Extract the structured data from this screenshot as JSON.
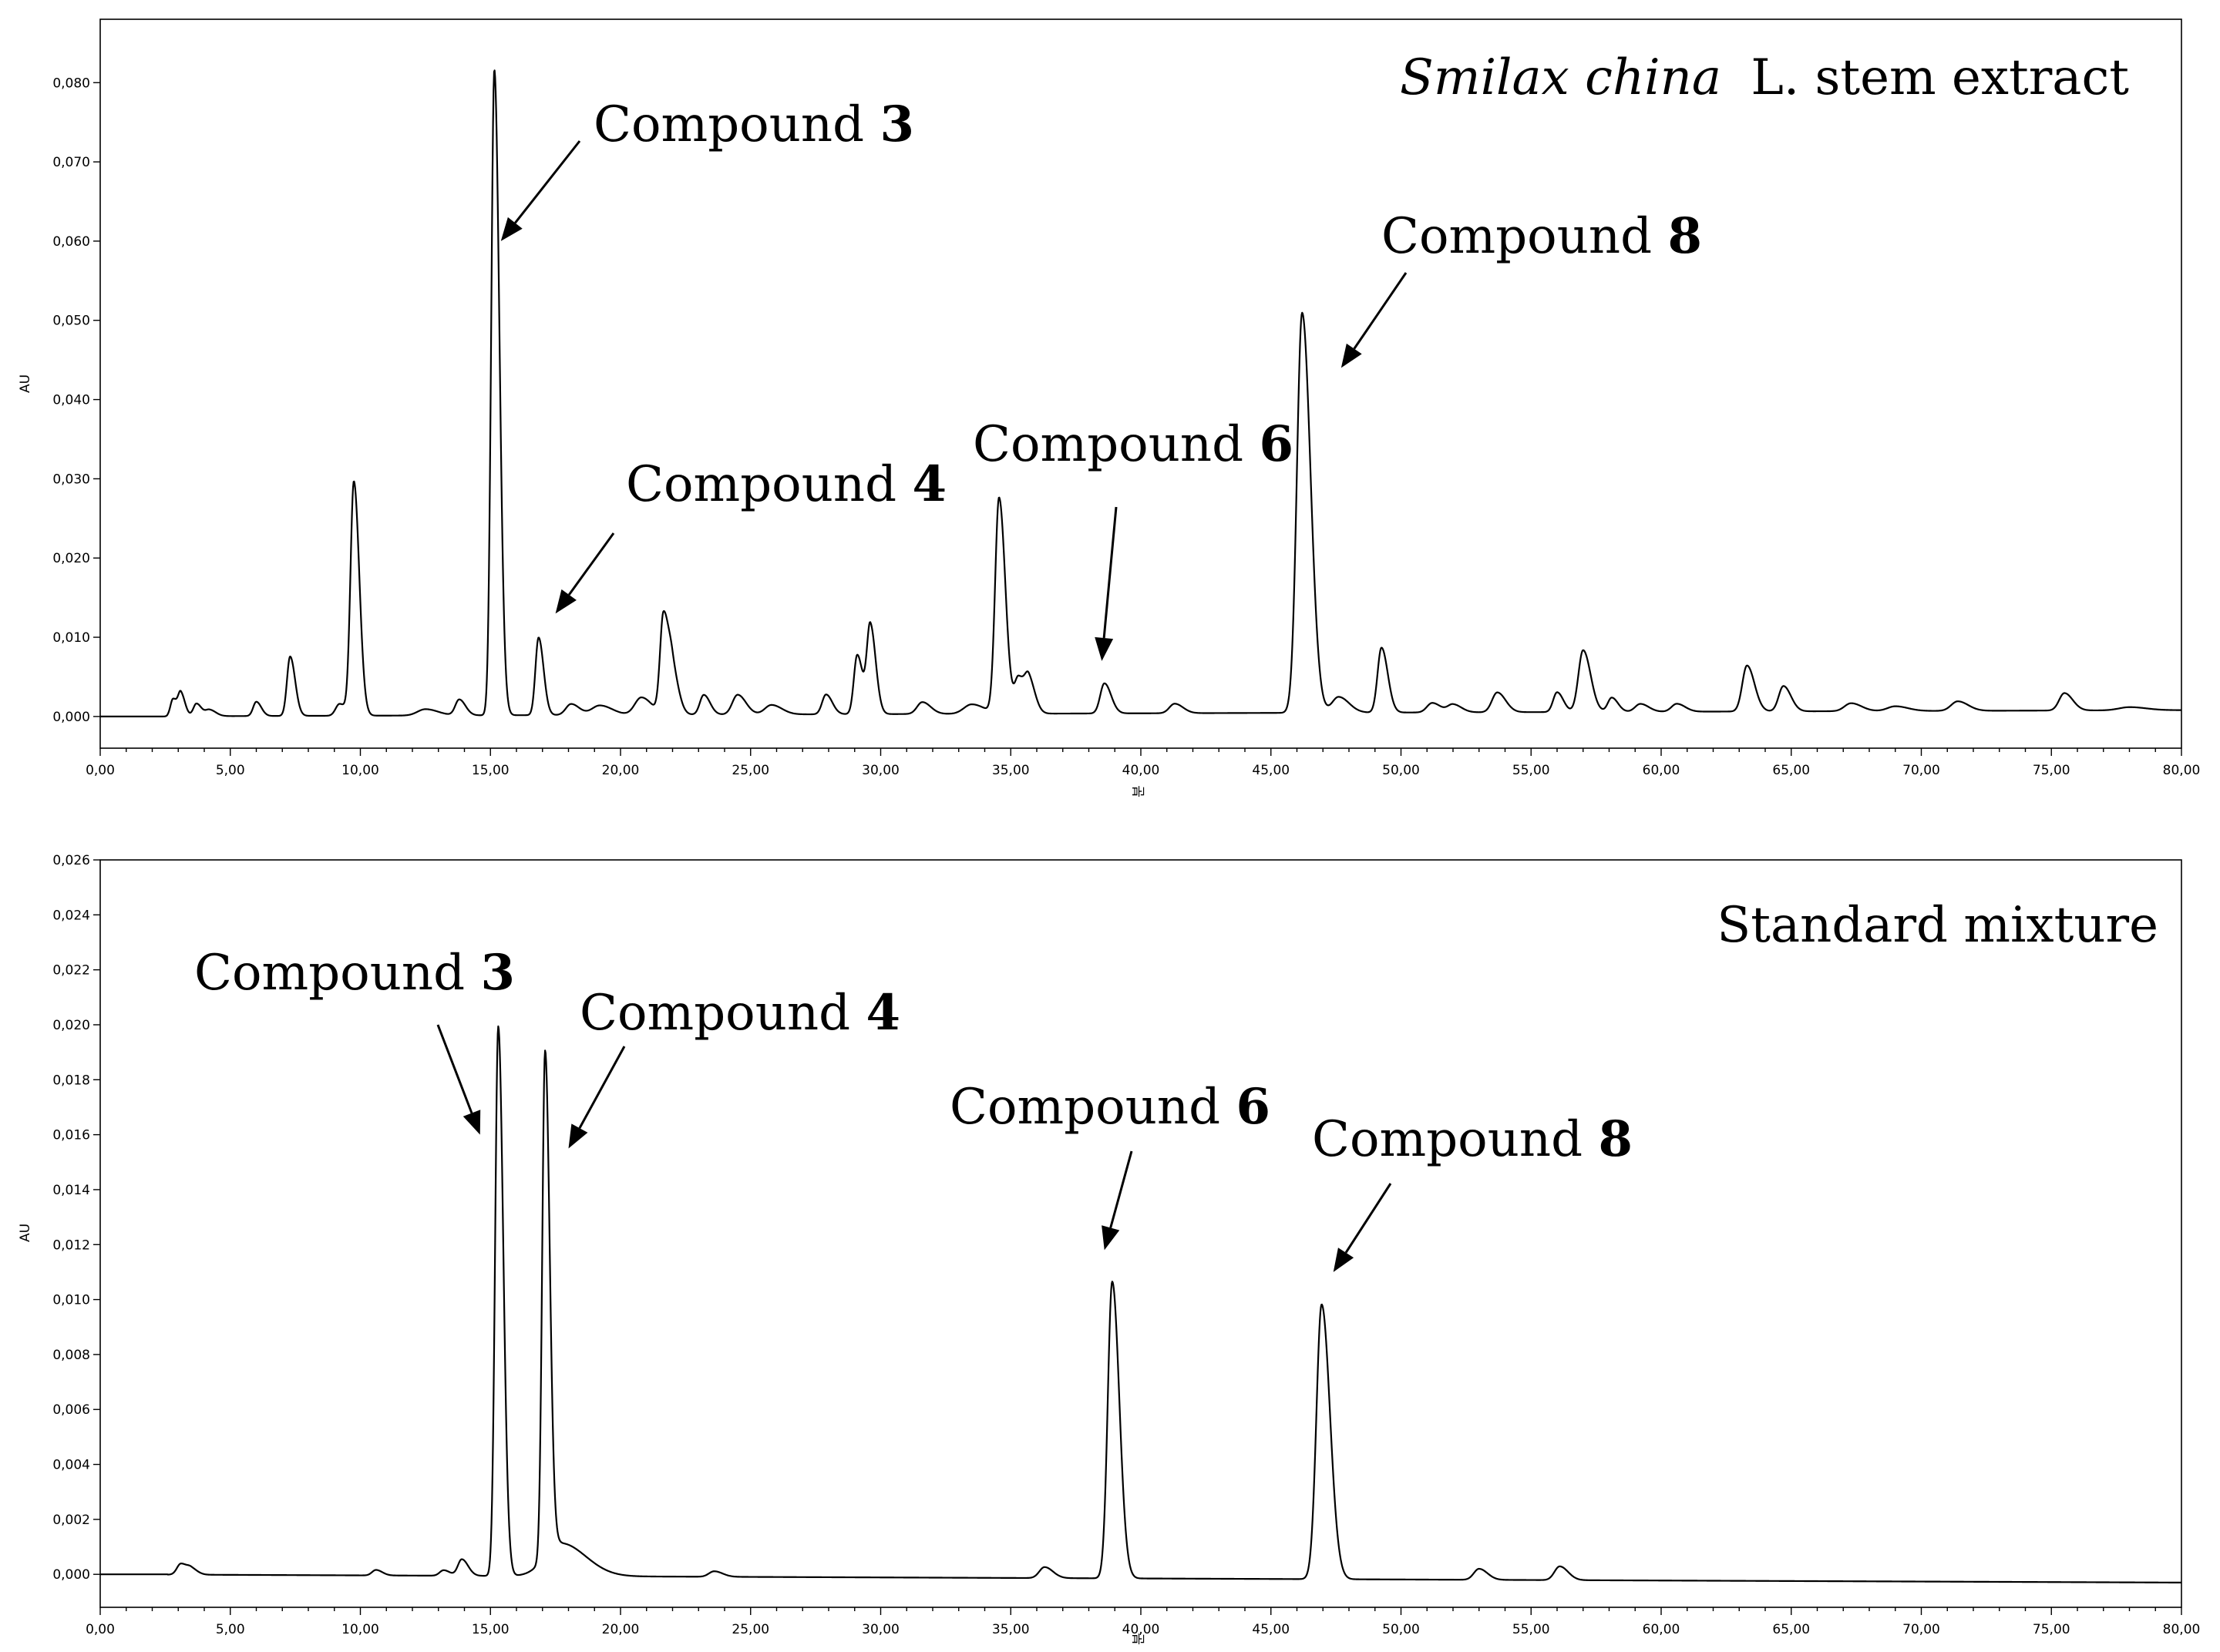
{
  "chart_data": [
    {
      "type": "line",
      "panel": "top",
      "title_italic": "Smilax china",
      "title_rest": "L. stem extract",
      "ylabel": "AU",
      "xlabel": "분",
      "xlim": [
        0,
        80
      ],
      "ylim": [
        -0.004,
        0.088
      ],
      "x_ticks": [
        "0,00",
        "5,00",
        "10,00",
        "15,00",
        "20,00",
        "25,00",
        "30,00",
        "35,00",
        "40,00",
        "45,00",
        "50,00",
        "55,00",
        "60,00",
        "65,00",
        "70,00",
        "75,00",
        "80,00"
      ],
      "y_ticks": [
        "0,000",
        "0,010",
        "0,020",
        "0,030",
        "0,040",
        "0,050",
        "0,060",
        "0,070",
        "0,080"
      ],
      "x_tick_values": [
        0,
        5,
        10,
        15,
        20,
        25,
        30,
        35,
        40,
        45,
        50,
        55,
        60,
        65,
        70,
        75,
        80
      ],
      "y_tick_values": [
        0,
        0.01,
        0.02,
        0.03,
        0.04,
        0.05,
        0.06,
        0.07,
        0.08
      ],
      "baseline": {
        "start": 0.0,
        "end": 0.0008
      },
      "peaks": [
        {
          "rt": 2.8,
          "h": 0.0022,
          "w": 0.1
        },
        {
          "rt": 3.1,
          "h": 0.0028,
          "w": 0.1
        },
        {
          "rt": 3.7,
          "h": 0.0016,
          "w": 0.12
        },
        {
          "rt": 4.2,
          "h": 0.0008,
          "w": 0.15
        },
        {
          "rt": 6.0,
          "h": 0.0018,
          "w": 0.12
        },
        {
          "rt": 7.3,
          "h": 0.0075,
          "w": 0.12
        },
        {
          "rt": 9.2,
          "h": 0.0015,
          "w": 0.15
        },
        {
          "rt": 9.75,
          "h": 0.0295,
          "w": 0.13
        },
        {
          "rt": 12.5,
          "h": 0.0008,
          "w": 0.3
        },
        {
          "rt": 13.8,
          "h": 0.002,
          "w": 0.15
        },
        {
          "rt": 15.15,
          "h": 0.0815,
          "w": 0.12
        },
        {
          "rt": 16.85,
          "h": 0.0098,
          "w": 0.12
        },
        {
          "rt": 18.1,
          "h": 0.0014,
          "w": 0.2
        },
        {
          "rt": 19.2,
          "h": 0.0012,
          "w": 0.3
        },
        {
          "rt": 20.8,
          "h": 0.0022,
          "w": 0.25
        },
        {
          "rt": 21.65,
          "h": 0.0125,
          "w": 0.13
        },
        {
          "rt": 22.0,
          "h": 0.005,
          "w": 0.15
        },
        {
          "rt": 23.2,
          "h": 0.0025,
          "w": 0.15
        },
        {
          "rt": 24.5,
          "h": 0.0025,
          "w": 0.2
        },
        {
          "rt": 25.8,
          "h": 0.0012,
          "w": 0.25
        },
        {
          "rt": 27.9,
          "h": 0.0025,
          "w": 0.15
        },
        {
          "rt": 29.1,
          "h": 0.0075,
          "w": 0.13
        },
        {
          "rt": 29.6,
          "h": 0.0112,
          "w": 0.13
        },
        {
          "rt": 31.6,
          "h": 0.0015,
          "w": 0.2
        },
        {
          "rt": 33.5,
          "h": 0.0012,
          "w": 0.3
        },
        {
          "rt": 34.55,
          "h": 0.0272,
          "w": 0.15
        },
        {
          "rt": 35.3,
          "h": 0.0045,
          "w": 0.15
        },
        {
          "rt": 35.7,
          "h": 0.004,
          "w": 0.15
        },
        {
          "rt": 38.6,
          "h": 0.0038,
          "w": 0.16
        },
        {
          "rt": 41.3,
          "h": 0.0012,
          "w": 0.2
        },
        {
          "rt": 46.2,
          "h": 0.0505,
          "w": 0.2
        },
        {
          "rt": 47.6,
          "h": 0.002,
          "w": 0.25
        },
        {
          "rt": 49.25,
          "h": 0.0082,
          "w": 0.15
        },
        {
          "rt": 51.2,
          "h": 0.0012,
          "w": 0.2
        },
        {
          "rt": 52.0,
          "h": 0.001,
          "w": 0.2
        },
        {
          "rt": 53.7,
          "h": 0.0025,
          "w": 0.2
        },
        {
          "rt": 56.0,
          "h": 0.0025,
          "w": 0.15
        },
        {
          "rt": 57.0,
          "h": 0.0078,
          "w": 0.18
        },
        {
          "rt": 58.1,
          "h": 0.0018,
          "w": 0.15
        },
        {
          "rt": 59.2,
          "h": 0.001,
          "w": 0.2
        },
        {
          "rt": 60.6,
          "h": 0.001,
          "w": 0.2
        },
        {
          "rt": 63.3,
          "h": 0.0058,
          "w": 0.18
        },
        {
          "rt": 64.7,
          "h": 0.0032,
          "w": 0.18
        },
        {
          "rt": 67.3,
          "h": 0.001,
          "w": 0.25
        },
        {
          "rt": 69.0,
          "h": 0.0006,
          "w": 0.3
        },
        {
          "rt": 71.4,
          "h": 0.0012,
          "w": 0.25
        },
        {
          "rt": 75.5,
          "h": 0.0022,
          "w": 0.2
        },
        {
          "rt": 78.0,
          "h": 0.0004,
          "w": 0.4
        }
      ],
      "annotations": [
        {
          "text": "Compound ",
          "num": "3",
          "target_rt": 15.4,
          "target_y": 0.06
        },
        {
          "text": "Compound ",
          "num": "4",
          "target_rt": 17.5,
          "target_y": 0.013
        },
        {
          "text": "Compound ",
          "num": "6",
          "target_rt": 38.5,
          "target_y": 0.007
        },
        {
          "text": "Compound ",
          "num": "8",
          "target_rt": 47.7,
          "target_y": 0.044
        }
      ]
    },
    {
      "type": "line",
      "panel": "bottom",
      "title": "Standard mixture",
      "ylabel": "AU",
      "xlabel": "분",
      "xlim": [
        0,
        80
      ],
      "ylim": [
        -0.0012,
        0.026
      ],
      "x_ticks": [
        "0,00",
        "5,00",
        "10,00",
        "15,00",
        "20,00",
        "25,00",
        "30,00",
        "35,00",
        "40,00",
        "45,00",
        "50,00",
        "55,00",
        "60,00",
        "65,00",
        "70,00",
        "75,00",
        "80,00"
      ],
      "y_ticks": [
        "0,000",
        "0,002",
        "0,004",
        "0,006",
        "0,008",
        "0,010",
        "0,012",
        "0,014",
        "0,016",
        "0,018",
        "0,020",
        "0,022",
        "0,024",
        "0,026"
      ],
      "x_tick_values": [
        0,
        5,
        10,
        15,
        20,
        25,
        30,
        35,
        40,
        45,
        50,
        55,
        60,
        65,
        70,
        75,
        80
      ],
      "y_tick_values": [
        0,
        0.002,
        0.004,
        0.006,
        0.008,
        0.01,
        0.012,
        0.014,
        0.016,
        0.018,
        0.02,
        0.022,
        0.024,
        0.026
      ],
      "baseline": {
        "start": 0.0,
        "end": -0.0003
      },
      "peaks": [
        {
          "rt": 3.1,
          "h": 0.0004,
          "w": 0.15
        },
        {
          "rt": 3.5,
          "h": 0.0002,
          "w": 0.15
        },
        {
          "rt": 10.6,
          "h": 0.0002,
          "w": 0.15
        },
        {
          "rt": 13.2,
          "h": 0.0002,
          "w": 0.15
        },
        {
          "rt": 13.9,
          "h": 0.0006,
          "w": 0.15
        },
        {
          "rt": 15.3,
          "h": 0.02,
          "w": 0.12
        },
        {
          "rt": 17.1,
          "h": 0.0184,
          "w": 0.11
        },
        {
          "rt": 17.7,
          "h": 0.0012,
          "w": 0.6
        },
        {
          "rt": 23.6,
          "h": 0.0002,
          "w": 0.2
        },
        {
          "rt": 36.3,
          "h": 0.0004,
          "w": 0.2
        },
        {
          "rt": 38.9,
          "h": 0.0108,
          "w": 0.17
        },
        {
          "rt": 46.95,
          "h": 0.01,
          "w": 0.2
        },
        {
          "rt": 53.0,
          "h": 0.0004,
          "w": 0.2
        },
        {
          "rt": 56.1,
          "h": 0.0005,
          "w": 0.2
        }
      ],
      "annotations": [
        {
          "text": "Compound ",
          "num": "3",
          "target_rt": 14.6,
          "target_y": 0.016
        },
        {
          "text": "Compound ",
          "num": "4",
          "target_rt": 18.0,
          "target_y": 0.0155
        },
        {
          "text": "Compound ",
          "num": "6",
          "target_rt": 38.6,
          "target_y": 0.0118
        },
        {
          "text": "Compound ",
          "num": "8",
          "target_rt": 47.4,
          "target_y": 0.011
        }
      ]
    }
  ]
}
